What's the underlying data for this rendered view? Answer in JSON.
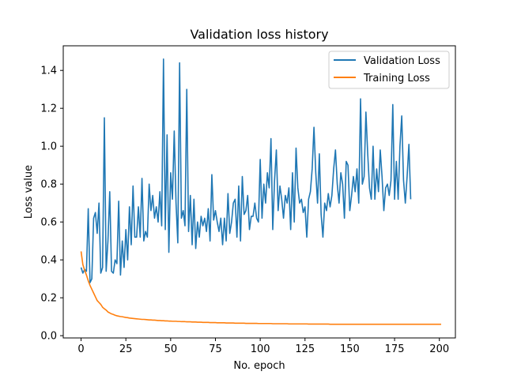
{
  "chart_data": {
    "type": "line",
    "title": "Validation loss history",
    "xlabel": "No. epoch",
    "ylabel": "Loss value",
    "xlim": [
      -9.95,
      208.95
    ],
    "ylim": [
      -0.012,
      1.53
    ],
    "xticks": [
      0,
      25,
      50,
      75,
      100,
      125,
      150,
      175,
      200
    ],
    "yticks": [
      0.0,
      0.2,
      0.4,
      0.6,
      0.8,
      1.0,
      1.2,
      1.4
    ],
    "legend_position": "top-right",
    "grid": false,
    "series": [
      {
        "name": "Validation Loss",
        "color": "#1f77b4",
        "values": [
          0.36,
          0.33,
          0.35,
          0.34,
          0.67,
          0.28,
          0.3,
          0.62,
          0.65,
          0.54,
          0.7,
          0.33,
          0.36,
          1.15,
          0.34,
          0.5,
          0.76,
          0.34,
          0.33,
          0.4,
          0.38,
          0.71,
          0.32,
          0.5,
          0.36,
          0.56,
          0.4,
          0.68,
          0.48,
          0.79,
          0.52,
          0.52,
          0.68,
          0.52,
          0.83,
          0.5,
          0.55,
          0.52,
          0.8,
          0.66,
          0.74,
          0.62,
          0.68,
          0.6,
          0.76,
          0.58,
          1.46,
          0.56,
          1.06,
          0.44,
          0.86,
          0.72,
          1.08,
          0.7,
          0.49,
          1.44,
          0.62,
          0.66,
          0.58,
          1.3,
          0.55,
          0.74,
          0.48,
          0.72,
          0.46,
          0.6,
          0.52,
          0.63,
          0.58,
          0.62,
          0.55,
          0.67,
          0.5,
          0.85,
          0.61,
          0.66,
          0.6,
          0.55,
          0.62,
          0.48,
          0.62,
          0.5,
          0.75,
          0.54,
          0.6,
          0.7,
          0.72,
          0.52,
          0.79,
          0.5,
          0.84,
          0.64,
          0.66,
          0.74,
          0.56,
          0.63,
          0.63,
          0.7,
          0.62,
          0.6,
          0.93,
          0.62,
          0.8,
          0.7,
          0.86,
          0.78,
          1.04,
          0.56,
          0.82,
          0.98,
          0.66,
          0.79,
          0.72,
          0.62,
          0.74,
          0.7,
          0.78,
          0.56,
          0.86,
          0.6,
          0.99,
          0.78,
          0.7,
          0.72,
          0.65,
          0.68,
          0.52,
          0.72,
          0.76,
          0.88,
          1.1,
          0.86,
          0.7,
          0.96,
          0.64,
          0.52,
          0.7,
          0.66,
          0.75,
          0.68,
          0.74,
          0.88,
          0.98,
          0.8,
          0.7,
          0.86,
          0.8,
          0.62,
          0.92,
          0.9,
          0.66,
          0.74,
          0.84,
          0.76,
          0.88,
          0.7,
          1.25,
          0.8,
          0.84,
          1.18,
          0.96,
          0.78,
          0.72,
          1.0,
          0.72,
          0.88,
          0.76,
          0.98,
          0.84,
          0.66,
          0.78,
          0.8,
          0.74,
          0.82,
          1.22,
          0.72,
          0.92,
          0.72,
          1.0,
          1.16,
          0.82,
          0.7,
          0.84,
          1.01,
          0.72
        ],
        "x_start": 0
      },
      {
        "name": "Training Loss",
        "color": "#ff7f0e",
        "values": [
          0.445,
          0.375,
          0.345,
          0.32,
          0.29,
          0.265,
          0.245,
          0.225,
          0.205,
          0.185,
          0.175,
          0.165,
          0.15,
          0.142,
          0.135,
          0.125,
          0.12,
          0.115,
          0.112,
          0.108,
          0.105,
          0.103,
          0.101,
          0.1,
          0.098,
          0.096,
          0.095,
          0.093,
          0.092,
          0.091,
          0.09,
          0.089,
          0.088,
          0.087,
          0.086,
          0.086,
          0.085,
          0.084,
          0.083,
          0.083,
          0.082,
          0.082,
          0.081,
          0.08,
          0.08,
          0.079,
          0.079,
          0.078,
          0.078,
          0.077,
          0.077,
          0.076,
          0.076,
          0.076,
          0.075,
          0.075,
          0.074,
          0.074,
          0.074,
          0.073,
          0.073,
          0.073,
          0.072,
          0.072,
          0.072,
          0.071,
          0.071,
          0.071,
          0.07,
          0.07,
          0.07,
          0.07,
          0.069,
          0.069,
          0.069,
          0.069,
          0.068,
          0.068,
          0.068,
          0.068,
          0.068,
          0.067,
          0.067,
          0.067,
          0.067,
          0.067,
          0.066,
          0.066,
          0.066,
          0.066,
          0.066,
          0.066,
          0.065,
          0.065,
          0.065,
          0.065,
          0.065,
          0.065,
          0.065,
          0.064,
          0.064,
          0.064,
          0.064,
          0.064,
          0.064,
          0.064,
          0.064,
          0.063,
          0.063,
          0.063,
          0.063,
          0.063,
          0.063,
          0.063,
          0.063,
          0.063,
          0.062,
          0.062,
          0.062,
          0.062,
          0.062,
          0.062,
          0.062,
          0.062,
          0.062,
          0.062,
          0.062,
          0.061,
          0.061,
          0.061,
          0.061,
          0.061,
          0.061,
          0.061,
          0.061,
          0.061,
          0.061,
          0.061,
          0.061,
          0.06,
          0.06,
          0.06,
          0.06,
          0.06,
          0.06,
          0.06,
          0.06,
          0.06,
          0.06,
          0.06,
          0.06,
          0.06,
          0.06,
          0.06,
          0.06,
          0.06,
          0.06,
          0.06,
          0.06,
          0.06,
          0.06,
          0.06,
          0.06,
          0.06,
          0.06,
          0.06,
          0.06,
          0.06,
          0.06,
          0.06,
          0.06,
          0.06,
          0.06,
          0.06,
          0.06,
          0.06,
          0.06,
          0.06,
          0.06,
          0.06,
          0.06,
          0.06,
          0.06,
          0.06,
          0.06,
          0.06,
          0.06,
          0.06,
          0.06,
          0.06,
          0.06,
          0.06,
          0.06,
          0.06,
          0.06,
          0.06,
          0.06,
          0.06,
          0.06,
          0.06,
          0.06,
          0.06
        ],
        "x_start": 0
      }
    ]
  }
}
